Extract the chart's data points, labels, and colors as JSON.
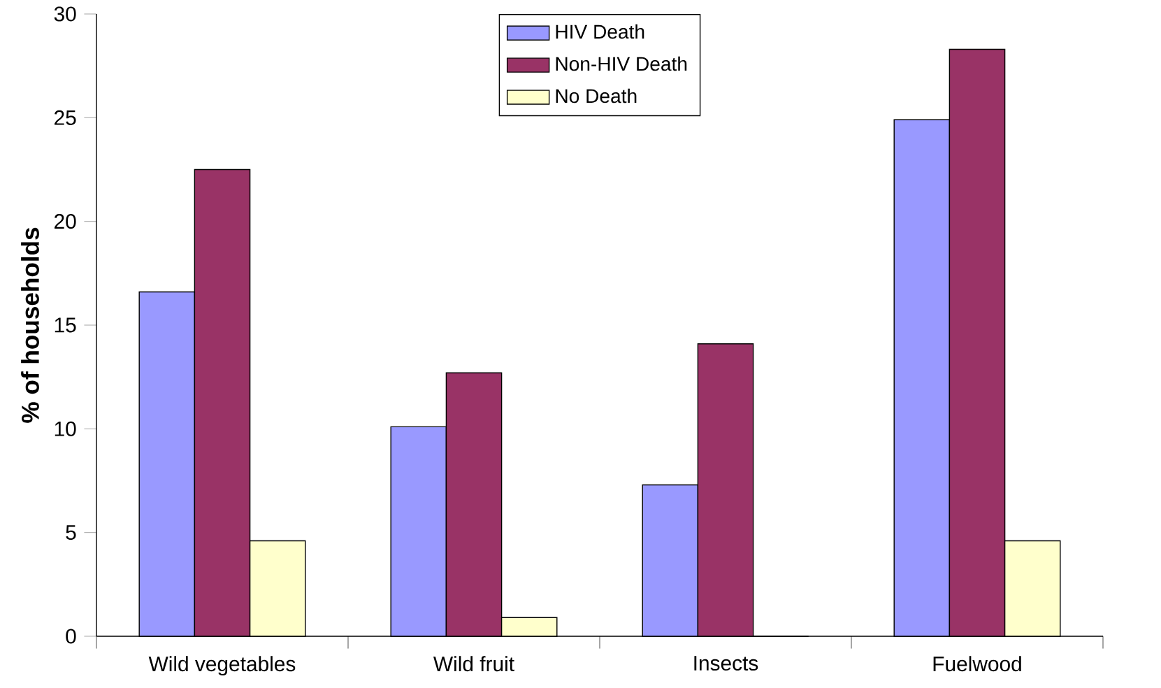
{
  "chart_data": {
    "type": "bar",
    "ylabel": "% of households",
    "categories": [
      "Wild vegetables",
      "Wild fruit",
      "Insects",
      "Fuelwood"
    ],
    "series": [
      {
        "name": "HIV Death",
        "color": "#9999ff",
        "values": [
          16.6,
          10.1,
          7.3,
          24.9
        ]
      },
      {
        "name": "Non-HIV Death",
        "color": "#993366",
        "values": [
          22.5,
          12.7,
          14.1,
          28.3
        ]
      },
      {
        "name": "No Death",
        "color": "#ffffcc",
        "values": [
          4.6,
          0.9,
          0,
          4.6
        ]
      }
    ],
    "ylim": [
      0,
      30
    ],
    "yticks": [
      0,
      5,
      10,
      15,
      20,
      25,
      30
    ],
    "grid": false,
    "legend": "top"
  }
}
